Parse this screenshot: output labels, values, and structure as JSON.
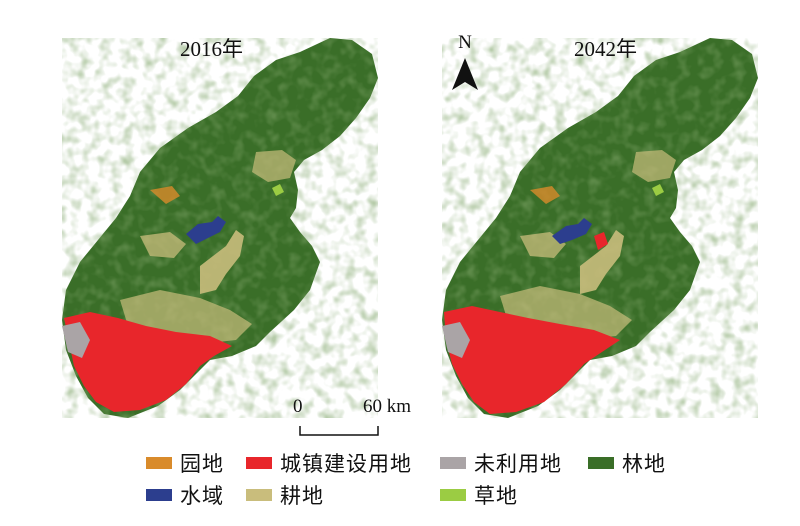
{
  "maps": [
    {
      "title": "2016年"
    },
    {
      "title": "2042年"
    }
  ],
  "north_arrow": {
    "label": "N"
  },
  "scale_bar": {
    "start": "0",
    "end": "60 km"
  },
  "legend": [
    {
      "label": "园地",
      "color": "#d98b2b"
    },
    {
      "label": "城镇建设用地",
      "color": "#e8262b"
    },
    {
      "label": "未利用地",
      "color": "#aaa4a6"
    },
    {
      "label": "林地",
      "color": "#3a6e28"
    },
    {
      "label": "水域",
      "color": "#2c3e8e"
    },
    {
      "label": "耕地",
      "color": "#c9bd7c"
    },
    {
      "label": "草地",
      "color": "#9bcc43"
    }
  ]
}
